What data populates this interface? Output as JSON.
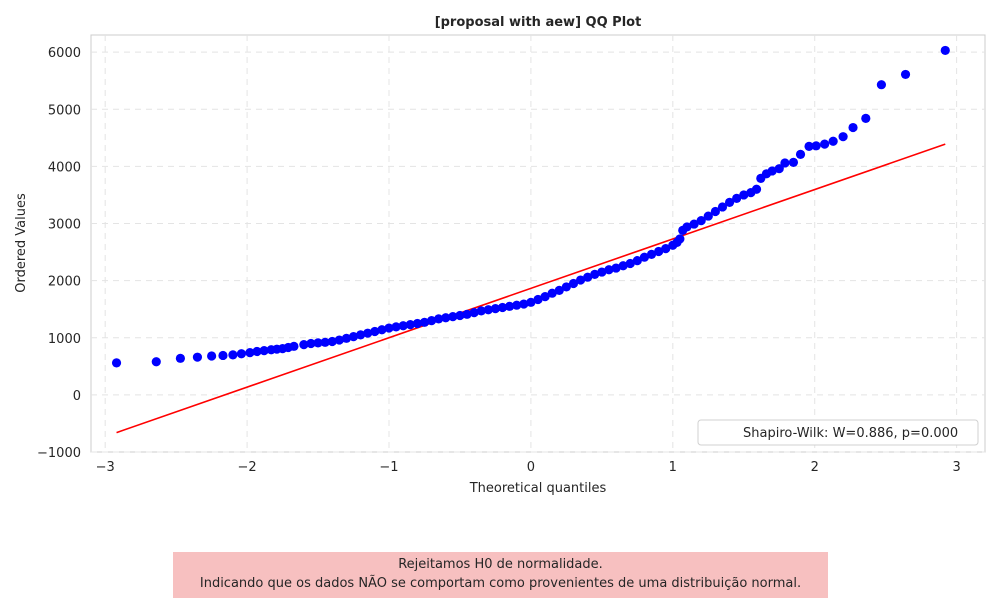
{
  "chart_data": {
    "type": "scatter",
    "title": "[proposal with aew] QQ Plot",
    "xlabel": "Theoretical quantiles",
    "ylabel": "Ordered Values",
    "xlim": [
      -3.1,
      3.2
    ],
    "ylim": [
      -1000,
      6300
    ],
    "xticks": [
      -3,
      -2,
      -1,
      0,
      1,
      2,
      3
    ],
    "xtick_labels": [
      "−3",
      "−2",
      "−1",
      "0",
      "1",
      "2",
      "3"
    ],
    "yticks": [
      -1000,
      0,
      1000,
      2000,
      3000,
      4000,
      5000,
      6000
    ],
    "ytick_labels": [
      "−1000",
      "0",
      "1000",
      "2000",
      "3000",
      "4000",
      "5000",
      "6000"
    ],
    "grid": true,
    "legend_position": "lower-right",
    "legend_label": "Shapiro-Wilk: W=0.886, p=0.000",
    "points_color": "#0000ff",
    "line_color": "#ff0000",
    "fit_line": {
      "x": [
        -2.92,
        2.92
      ],
      "y": [
        -660,
        4390
      ]
    },
    "points": {
      "x": [
        -2.92,
        -2.64,
        -2.47,
        -2.35,
        -2.25,
        -2.17,
        -2.1,
        -2.04,
        -1.98,
        -1.93,
        -1.88,
        -1.83,
        -1.79,
        -1.75,
        -1.71,
        -1.67,
        -1.6,
        -1.55,
        -1.5,
        -1.45,
        -1.4,
        -1.35,
        -1.3,
        -1.25,
        -1.2,
        -1.15,
        -1.1,
        -1.05,
        -1.0,
        -0.95,
        -0.9,
        -0.85,
        -0.8,
        -0.75,
        -0.7,
        -0.65,
        -0.6,
        -0.55,
        -0.5,
        -0.45,
        -0.4,
        -0.35,
        -0.3,
        -0.25,
        -0.2,
        -0.15,
        -0.1,
        -0.05,
        0.0,
        0.05,
        0.1,
        0.15,
        0.2,
        0.25,
        0.3,
        0.35,
        0.4,
        0.45,
        0.5,
        0.55,
        0.6,
        0.65,
        0.7,
        0.75,
        0.8,
        0.85,
        0.9,
        0.95,
        1.0,
        1.03,
        1.05,
        1.07,
        1.1,
        1.15,
        1.2,
        1.25,
        1.3,
        1.35,
        1.4,
        1.45,
        1.5,
        1.55,
        1.59,
        1.62,
        1.66,
        1.7,
        1.75,
        1.79,
        1.85,
        1.9,
        1.96,
        2.01,
        2.07,
        2.13,
        2.2,
        2.27,
        2.36,
        2.47,
        2.64,
        2.92
      ],
      "y": [
        560,
        580,
        640,
        660,
        680,
        690,
        700,
        720,
        740,
        760,
        775,
        790,
        800,
        810,
        830,
        850,
        880,
        900,
        910,
        920,
        935,
        960,
        990,
        1020,
        1050,
        1080,
        1110,
        1140,
        1170,
        1190,
        1210,
        1230,
        1250,
        1270,
        1300,
        1330,
        1350,
        1370,
        1390,
        1410,
        1440,
        1470,
        1490,
        1510,
        1530,
        1550,
        1570,
        1590,
        1620,
        1670,
        1720,
        1780,
        1830,
        1890,
        1950,
        2010,
        2060,
        2110,
        2150,
        2190,
        2220,
        2260,
        2300,
        2350,
        2410,
        2460,
        2510,
        2560,
        2620,
        2670,
        2730,
        2880,
        2940,
        2990,
        3050,
        3130,
        3210,
        3290,
        3370,
        3440,
        3500,
        3540,
        3600,
        3790,
        3870,
        3920,
        3960,
        4060,
        4070,
        4210,
        4350,
        4360,
        4390,
        4440,
        4520,
        4680,
        4840,
        5430,
        5610,
        6030
      ]
    }
  },
  "note": {
    "line1": "Rejeitamos H0 de normalidade.",
    "line2": "Indicando que os dados NÃO se comportam como provenientes de uma distribuição normal."
  }
}
